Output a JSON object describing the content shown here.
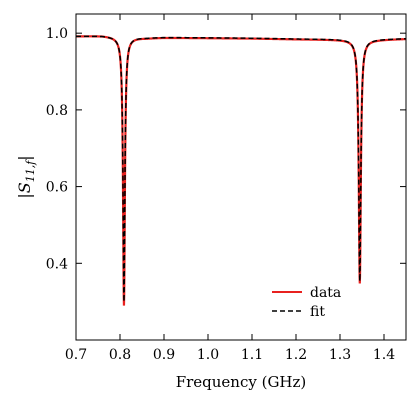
{
  "chart_data": {
    "type": "line",
    "xlabel": "Frequency (GHz)",
    "ylabel": {
      "bar": "|",
      "letter": "S",
      "subscript": "11,f"
    },
    "xlim": [
      0.7,
      1.45
    ],
    "ylim": [
      0.2,
      1.05
    ],
    "xticks": [
      0.7,
      0.8,
      0.9,
      1.0,
      1.1,
      1.2,
      1.3,
      1.4
    ],
    "xtick_labels": [
      "0.7",
      "0.8",
      "0.9",
      "1.0",
      "1.1",
      "1.2",
      "1.3",
      "1.4"
    ],
    "yticks": [
      0.4,
      0.6,
      0.8,
      1.0
    ],
    "ytick_labels": [
      "0.4",
      "0.6",
      "0.8",
      "1.0"
    ],
    "grid": false,
    "legend_position": "lower-right",
    "series": [
      {
        "name": "data",
        "color": "#e8211f",
        "style": "solid",
        "model": {
          "baseline": [
            [
              0.7,
              0.992
            ],
            [
              0.76,
              0.993
            ],
            [
              0.8,
              0.99
            ],
            [
              0.86,
              0.987
            ],
            [
              0.9,
              0.988
            ],
            [
              1.0,
              0.987
            ],
            [
              1.1,
              0.986
            ],
            [
              1.2,
              0.984
            ],
            [
              1.3,
              0.983
            ],
            [
              1.36,
              0.982
            ],
            [
              1.45,
              0.985
            ]
          ],
          "resonances": [
            {
              "f0": 0.809,
              "depth": 0.7,
              "hwhm": 0.0025
            },
            {
              "f0": 1.345,
              "depth": 0.635,
              "hwhm": 0.0028
            }
          ]
        }
      },
      {
        "name": "fit",
        "color": "#000000",
        "style": "dashed",
        "model": {
          "baseline": [
            [
              0.7,
              0.992
            ],
            [
              0.76,
              0.993
            ],
            [
              0.8,
              0.99
            ],
            [
              0.86,
              0.988
            ],
            [
              0.9,
              0.989
            ],
            [
              1.0,
              0.988
            ],
            [
              1.1,
              0.987
            ],
            [
              1.2,
              0.985
            ],
            [
              1.3,
              0.984
            ],
            [
              1.36,
              0.983
            ],
            [
              1.45,
              0.986
            ]
          ],
          "resonances": [
            {
              "f0": 0.809,
              "depth": 0.69,
              "hwhm": 0.0025
            },
            {
              "f0": 1.345,
              "depth": 0.63,
              "hwhm": 0.0028
            }
          ]
        }
      }
    ]
  }
}
